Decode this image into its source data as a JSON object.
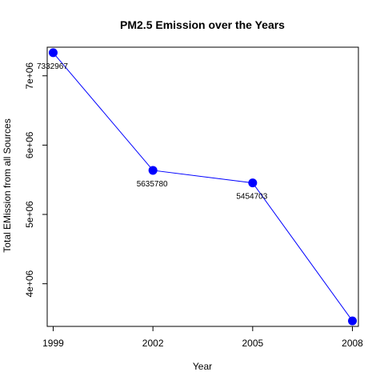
{
  "chart_data": {
    "type": "line",
    "title": "PM2.5 Emission over the Years",
    "xlabel": "Year",
    "ylabel": "Total EMission from all Sources",
    "categories": [
      "1999",
      "2002",
      "2005",
      "2008"
    ],
    "x": [
      1999,
      2002,
      2005,
      2008
    ],
    "series": [
      {
        "values": [
          7332967,
          5635780,
          5454703,
          3464206
        ],
        "labels": [
          "7332967",
          "5635780",
          "5454703",
          ""
        ],
        "color": "#0000ff"
      }
    ],
    "yticks": [
      4000000,
      5000000,
      6000000,
      7000000
    ],
    "ytick_labels": [
      "4e+06",
      "5e+06",
      "6e+06",
      "7e+06"
    ],
    "xticks": [
      1999,
      2002,
      2005,
      2008
    ],
    "xtick_labels": [
      "1999",
      "2002",
      "2005",
      "2008"
    ],
    "xlim": [
      1998.82,
      2008.18
    ],
    "ylim": [
      3384571,
      7412602
    ],
    "grid": false,
    "line_color": "#0000ff",
    "point_color": "#0000ff"
  }
}
